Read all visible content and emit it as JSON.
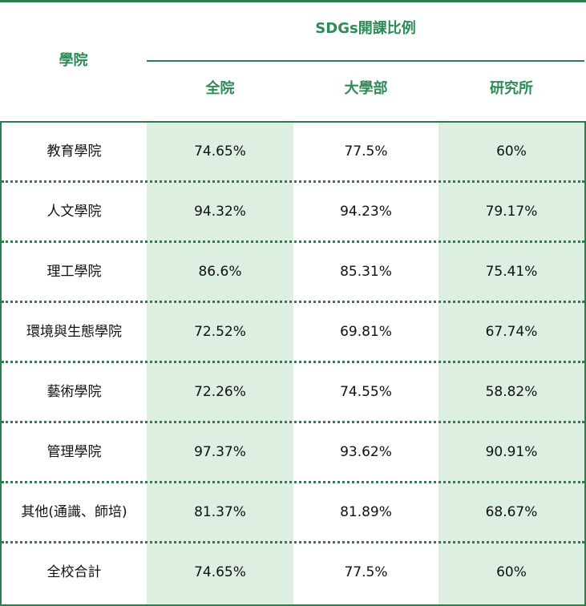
{
  "header": {
    "college": "學院",
    "sdgs_ratio": "SDGs開課比例",
    "all": "全院",
    "undergrad": "大學部",
    "graduate": "研究所"
  },
  "rows": [
    {
      "college": "教育學院",
      "all": "74.65%",
      "undergrad": "77.5%",
      "graduate": "60%"
    },
    {
      "college": "人文學院",
      "all": "94.32%",
      "undergrad": "94.23%",
      "graduate": "79.17%"
    },
    {
      "college": "理工學院",
      "all": "86.6%",
      "undergrad": "85.31%",
      "graduate": "75.41%"
    },
    {
      "college": "環境與生態學院",
      "all": "72.52%",
      "undergrad": "69.81%",
      "graduate": "67.74%"
    },
    {
      "college": "藝術學院",
      "all": "72.26%",
      "undergrad": "74.55%",
      "graduate": "58.82%"
    },
    {
      "college": "管理學院",
      "all": "97.37%",
      "undergrad": "93.62%",
      "graduate": "90.91%"
    },
    {
      "college": "其他(通識、師培)",
      "all": "81.37%",
      "undergrad": "81.89%",
      "graduate": "68.67%"
    },
    {
      "college": "全校合計",
      "all": "74.65%",
      "undergrad": "77.5%",
      "graduate": "60%"
    }
  ],
  "colors": {
    "accent": "#2e7d4f",
    "header_text": "#2e8b57",
    "shaded_column": "#dcefe0"
  }
}
